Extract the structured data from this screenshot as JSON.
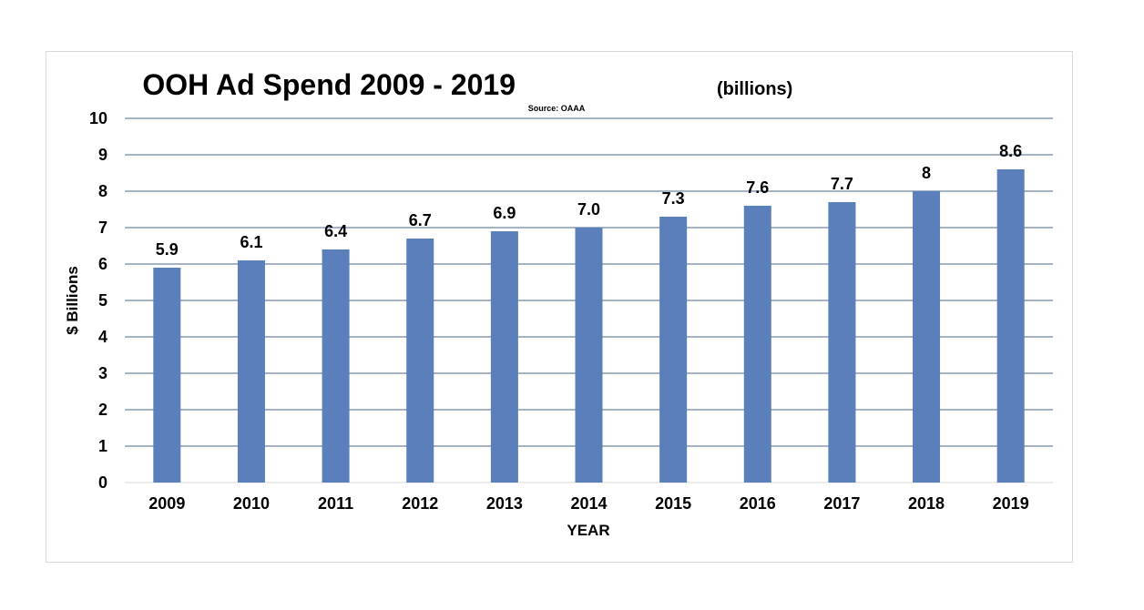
{
  "chart_data": {
    "type": "bar",
    "title": "OOH Ad Spend 2009 - 2019",
    "title_suffix": "(billions)",
    "subtitle": "Source: OAAA",
    "xlabel": "YEAR",
    "ylabel": "$ Billions",
    "categories": [
      "2009",
      "2010",
      "2011",
      "2012",
      "2013",
      "2014",
      "2015",
      "2016",
      "2017",
      "2018",
      "2019"
    ],
    "values": [
      5.9,
      6.1,
      6.4,
      6.7,
      6.9,
      7.0,
      7.3,
      7.6,
      7.7,
      8.0,
      8.6
    ],
    "data_labels": [
      "5.9",
      "6.1",
      "6.4",
      "6.7",
      "6.9",
      "7.0",
      "7.3",
      "7.6",
      "7.7",
      "8",
      "8.6"
    ],
    "ylim": [
      0,
      10
    ],
    "yticks": [
      "0",
      "1",
      "2",
      "3",
      "4",
      "5",
      "6",
      "7",
      "8",
      "9",
      "10"
    ],
    "grid": true,
    "legend": "none",
    "colors": {
      "bar": "#5a7fba",
      "grid": "#4a6a8c",
      "frame": "#d9d9d9"
    }
  }
}
